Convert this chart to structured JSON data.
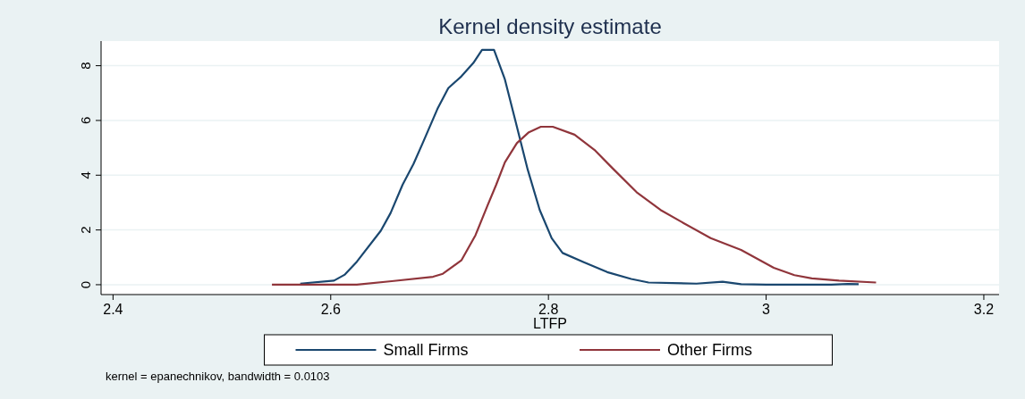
{
  "chart_data": {
    "type": "line",
    "title": "Kernel density estimate",
    "xlabel": "LTFP",
    "xlim": [
      2.389,
      3.214
    ],
    "xticks": [
      {
        "value": 2.4,
        "label": "2.4"
      },
      {
        "value": 2.6,
        "label": "2.6"
      },
      {
        "value": 2.8,
        "label": "2.8"
      },
      {
        "value": 3,
        "label": "3"
      },
      {
        "value": 3.2,
        "label": "3.2"
      }
    ],
    "ylim": [
      -0.36,
      8.9
    ],
    "yticks": [
      0,
      2,
      4,
      6,
      8
    ],
    "grid": "y",
    "legend": "bottom",
    "marker": "none",
    "line_style": "solid",
    "series": [
      {
        "name": "Small Firms",
        "color": "#1a476f",
        "x": [
          2.572,
          2.603,
          2.613,
          2.624,
          2.646,
          2.655,
          2.666,
          2.676,
          2.685,
          2.698,
          2.708,
          2.72,
          2.731,
          2.739,
          2.75,
          2.76,
          2.77,
          2.781,
          2.792,
          2.803,
          2.813,
          2.832,
          2.854,
          2.876,
          2.892,
          2.936,
          2.96,
          2.977,
          3.0,
          3.06,
          3.075,
          3.085
        ],
        "values": [
          0.04,
          0.15,
          0.37,
          0.84,
          1.97,
          2.62,
          3.65,
          4.41,
          5.22,
          6.42,
          7.18,
          7.61,
          8.1,
          8.58,
          8.58,
          7.5,
          5.93,
          4.2,
          2.73,
          1.7,
          1.16,
          0.83,
          0.46,
          0.21,
          0.08,
          0.04,
          0.11,
          0.02,
          0,
          0,
          0.03,
          0.02
        ]
      },
      {
        "name": "Other Firms",
        "color": "#90353b",
        "x": [
          2.546,
          2.624,
          2.656,
          2.694,
          2.703,
          2.72,
          2.733,
          2.744,
          2.752,
          2.76,
          2.771,
          2.782,
          2.793,
          2.804,
          2.824,
          2.843,
          2.859,
          2.881,
          2.903,
          2.922,
          2.949,
          2.977,
          3.007,
          3.026,
          3.042,
          3.067,
          3.101
        ],
        "values": [
          0,
          0,
          0.13,
          0.29,
          0.4,
          0.89,
          1.81,
          2.89,
          3.65,
          4.47,
          5.17,
          5.57,
          5.77,
          5.77,
          5.48,
          4.9,
          4.25,
          3.38,
          2.73,
          2.3,
          1.7,
          1.27,
          0.62,
          0.35,
          0.23,
          0.15,
          0.08
        ]
      }
    ],
    "annotations": [
      "kernel = epanechnikov, bandwidth = 0.0103"
    ]
  }
}
